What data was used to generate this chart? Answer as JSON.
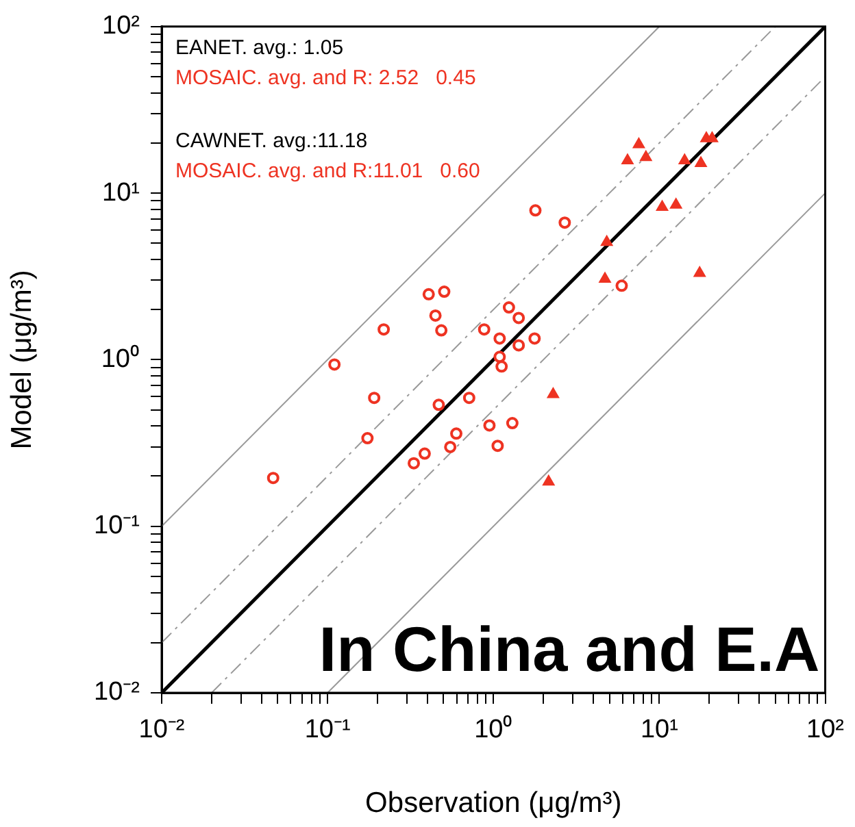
{
  "chart_data": {
    "type": "scatter",
    "xlabel": "Observation (μg/m³)",
    "ylabel": "Model (μg/m³)",
    "log": "xy",
    "grid": false,
    "legend": false,
    "xlim": [
      0.01,
      100
    ],
    "ylim": [
      0.01,
      100
    ],
    "xticks": [
      {
        "value": 0.01,
        "label": "10⁻²"
      },
      {
        "value": 0.02,
        "label": null
      },
      {
        "value": 0.03,
        "label": null
      },
      {
        "value": 0.04,
        "label": null
      },
      {
        "value": 0.05,
        "label": null
      },
      {
        "value": 0.06,
        "label": null
      },
      {
        "value": 0.07,
        "label": null
      },
      {
        "value": 0.08,
        "label": null
      },
      {
        "value": 0.09,
        "label": null
      },
      {
        "value": 0.1,
        "label": "10⁻¹"
      },
      {
        "value": 0.2,
        "label": null
      },
      {
        "value": 0.3,
        "label": null
      },
      {
        "value": 0.4,
        "label": null
      },
      {
        "value": 0.5,
        "label": null
      },
      {
        "value": 0.6,
        "label": null
      },
      {
        "value": 0.7,
        "label": null
      },
      {
        "value": 0.8,
        "label": null
      },
      {
        "value": 0.9,
        "label": null
      },
      {
        "value": 1,
        "label": "10⁰"
      },
      {
        "value": 2,
        "label": null
      },
      {
        "value": 3,
        "label": null
      },
      {
        "value": 4,
        "label": null
      },
      {
        "value": 5,
        "label": null
      },
      {
        "value": 6,
        "label": null
      },
      {
        "value": 7,
        "label": null
      },
      {
        "value": 8,
        "label": null
      },
      {
        "value": 9,
        "label": null
      },
      {
        "value": 10,
        "label": "10¹"
      },
      {
        "value": 20,
        "label": null
      },
      {
        "value": 30,
        "label": null
      },
      {
        "value": 40,
        "label": null
      },
      {
        "value": 50,
        "label": null
      },
      {
        "value": 60,
        "label": null
      },
      {
        "value": 70,
        "label": null
      },
      {
        "value": 80,
        "label": null
      },
      {
        "value": 90,
        "label": null
      },
      {
        "value": 100,
        "label": "10²"
      }
    ],
    "yticks": [
      {
        "value": 0.01,
        "label": "10⁻²"
      },
      {
        "value": 0.02,
        "label": null
      },
      {
        "value": 0.03,
        "label": null
      },
      {
        "value": 0.04,
        "label": null
      },
      {
        "value": 0.05,
        "label": null
      },
      {
        "value": 0.06,
        "label": null
      },
      {
        "value": 0.07,
        "label": null
      },
      {
        "value": 0.08,
        "label": null
      },
      {
        "value": 0.09,
        "label": null
      },
      {
        "value": 0.1,
        "label": "10⁻¹"
      },
      {
        "value": 0.2,
        "label": null
      },
      {
        "value": 0.3,
        "label": null
      },
      {
        "value": 0.4,
        "label": null
      },
      {
        "value": 0.5,
        "label": null
      },
      {
        "value": 0.6,
        "label": null
      },
      {
        "value": 0.7,
        "label": null
      },
      {
        "value": 0.8,
        "label": null
      },
      {
        "value": 0.9,
        "label": null
      },
      {
        "value": 1,
        "label": "10⁰"
      },
      {
        "value": 2,
        "label": null
      },
      {
        "value": 3,
        "label": null
      },
      {
        "value": 4,
        "label": null
      },
      {
        "value": 5,
        "label": null
      },
      {
        "value": 6,
        "label": null
      },
      {
        "value": 7,
        "label": null
      },
      {
        "value": 8,
        "label": null
      },
      {
        "value": 9,
        "label": null
      },
      {
        "value": 10,
        "label": "10¹"
      },
      {
        "value": 20,
        "label": null
      },
      {
        "value": 30,
        "label": null
      },
      {
        "value": 40,
        "label": null
      },
      {
        "value": 50,
        "label": null
      },
      {
        "value": 60,
        "label": null
      },
      {
        "value": 70,
        "label": null
      },
      {
        "value": 80,
        "label": null
      },
      {
        "value": 90,
        "label": null
      },
      {
        "value": 100,
        "label": "10²"
      }
    ],
    "annotations": [
      "EANET. avg.: 1.05",
      "MOSAIC. avg. and R: 2.52   0.45",
      "CAWNET. avg.:11.18",
      "MOSAIC. avg. and R:11.01   0.60",
      "In China and E.A"
    ],
    "series": [
      {
        "type": "line",
        "color": "#000000",
        "line_style": "solid",
        "marker": "none",
        "x": [
          0.01,
          100
        ],
        "values": [
          0.01,
          100
        ]
      },
      {
        "type": "line",
        "color": "#999999",
        "line_style": "dashed",
        "marker": "none",
        "x": [
          0.01,
          50
        ],
        "values": [
          0.02,
          100
        ]
      },
      {
        "type": "line",
        "color": "#999999",
        "line_style": "dashed",
        "marker": "none",
        "x": [
          0.02,
          100
        ],
        "values": [
          0.01,
          50
        ]
      },
      {
        "type": "line",
        "color": "#999999",
        "line_style": "solid",
        "marker": "none",
        "x": [
          0.01,
          10
        ],
        "values": [
          0.1,
          100
        ]
      },
      {
        "type": "line",
        "color": "#999999",
        "line_style": "solid",
        "marker": "none",
        "x": [
          0.1,
          100
        ],
        "values": [
          0.01,
          10
        ]
      },
      {
        "type": "scatter",
        "color": "#ee3322",
        "marker": "circle",
        "x": [
          0.047,
          0.11,
          0.218,
          0.191,
          0.174,
          0.407,
          0.505,
          0.447,
          0.485,
          0.879,
          0.468,
          0.714,
          0.331,
          0.385,
          0.597,
          0.549,
          0.946,
          1.79,
          2.69,
          1.24,
          1.42,
          1.09,
          1.42,
          1.77,
          1.09,
          1.12,
          1.3,
          1.06,
          5.93
        ],
        "values": [
          0.195,
          0.936,
          1.52,
          0.59,
          0.338,
          2.47,
          2.56,
          1.84,
          1.5,
          1.52,
          0.536,
          0.59,
          0.239,
          0.273,
          0.36,
          0.299,
          0.403,
          7.88,
          6.65,
          2.06,
          1.78,
          1.34,
          1.22,
          1.34,
          1.04,
          0.91,
          0.416,
          0.304,
          2.78
        ]
      },
      {
        "type": "scatter",
        "color": "#ee3322",
        "marker": "triangle",
        "x": [
          7.52,
          6.43,
          8.3,
          19.2,
          20.8,
          14.2,
          17.8,
          10.4,
          12.6,
          4.82,
          4.7,
          17.5,
          2.29,
          2.15
        ],
        "values": [
          19.6,
          15.7,
          16.4,
          21.3,
          21.3,
          15.7,
          15.1,
          8.25,
          8.5,
          5.08,
          3.05,
          3.31,
          0.62,
          0.185
        ]
      }
    ]
  }
}
